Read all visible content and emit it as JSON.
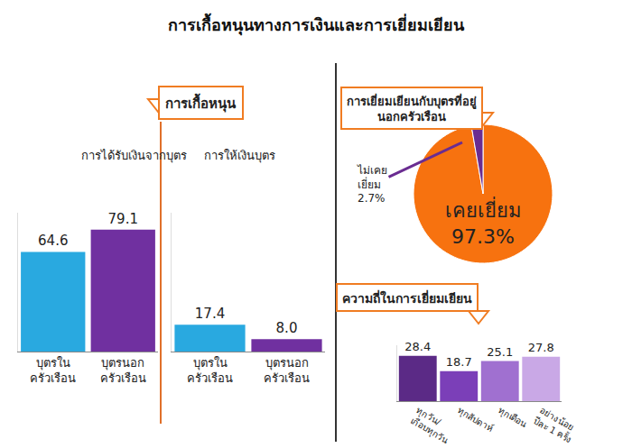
{
  "title": "การเกื้อหนุนทางการเงินและการเยี่ยมเยียน",
  "headers": [
    "การเกื้อหนุน"
  ],
  "chart_data": [
    {
      "type": "bar",
      "title": "การได้รับเงินจากบุตร",
      "categories": [
        "บุตรใน\nครัวเรือน",
        "บุตรนอก\nครัวเรือน"
      ],
      "values": [
        64.6,
        79.1
      ],
      "colors": [
        "#29a9e0",
        "#7030a0"
      ],
      "ylim": [
        0,
        90
      ],
      "yticks": [],
      "tick_labels": "x",
      "data_labels": true,
      "grid": false
    },
    {
      "type": "bar",
      "title": "การให้เงินบุตร",
      "categories": [
        "บุตรใน\nครัวเรือน",
        "บุตรนอก\nครัวเรือน"
      ],
      "values": [
        17.4,
        8.0
      ],
      "value_labels": [
        "17.4",
        "8.0"
      ],
      "colors": [
        "#29a9e0",
        "#7030a0"
      ],
      "ylim": [
        0,
        90
      ],
      "yticks": [],
      "tick_labels": "x",
      "data_labels": true,
      "grid": false
    },
    {
      "type": "pie",
      "title": "การเยี่ยมเยียนกับบุตรที่อยู่\nนอกครัวเรือน",
      "categories": [
        "เคยเยี่ยม",
        "ไม่เคย\nเยี่ยม"
      ],
      "values": [
        97.3,
        2.7
      ],
      "value_labels": [
        "97.3%",
        "2.7%"
      ],
      "colors": [
        "#f7720f",
        "#6a2c91"
      ],
      "data_labels": true
    },
    {
      "type": "bar",
      "title": "ความถี่ในการเยี่ยมเยียน",
      "categories": [
        "ทุกวัน/\nเกือบทุกวัน",
        "ทุกสัปดาห์",
        "ทุกเดือน",
        "อย่างน้อย\nปีละ 1 ครั้ง"
      ],
      "values": [
        28.4,
        18.7,
        25.1,
        27.8
      ],
      "colors": [
        "#5b2a86",
        "#7b3fb8",
        "#a070d0",
        "#c9a8e6"
      ],
      "ylim": [
        0,
        35
      ],
      "yticks": [],
      "tick_labels": "x",
      "data_labels": true,
      "grid": false
    }
  ]
}
